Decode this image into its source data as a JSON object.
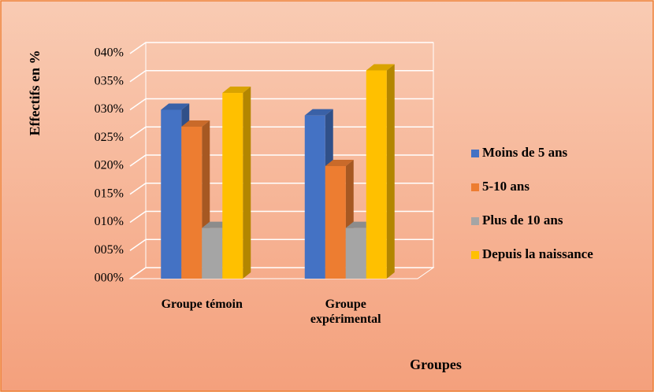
{
  "chart_data": {
    "type": "bar3d",
    "y_label": "Effectifs en %",
    "x_label": "Groupes",
    "categories": [
      "Groupe témoin",
      "Groupe expérimental"
    ],
    "series": [
      {
        "name": "Moins de 5 ans",
        "color": "#4472c4",
        "values": [
          30,
          29
        ]
      },
      {
        "name": "5-10 ans",
        "color": "#ed7d31",
        "values": [
          27,
          20
        ]
      },
      {
        "name": "Plus de 10 ans",
        "color": "#a5a5a5",
        "values": [
          9,
          9
        ]
      },
      {
        "name": "Depuis la naissance",
        "color": "#ffc000",
        "values": [
          33,
          37
        ]
      }
    ],
    "ylim": [
      0,
      40
    ],
    "yticks": [
      {
        "value": 0,
        "label": "000%"
      },
      {
        "value": 5,
        "label": "005%"
      },
      {
        "value": 10,
        "label": "010%"
      },
      {
        "value": 15,
        "label": "015%"
      },
      {
        "value": 20,
        "label": "020%"
      },
      {
        "value": 25,
        "label": "025%"
      },
      {
        "value": 30,
        "label": "030%"
      },
      {
        "value": 35,
        "label": "035%"
      },
      {
        "value": 40,
        "label": "040%"
      }
    ],
    "grid": true,
    "legend": "right"
  }
}
